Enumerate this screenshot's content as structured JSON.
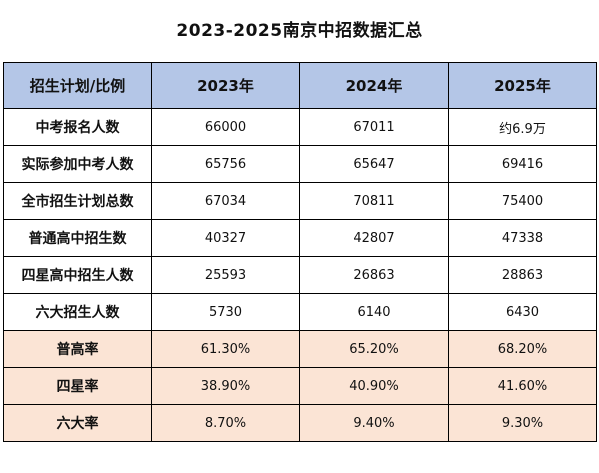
{
  "title": "2023-2025南京中招数据汇总",
  "table": {
    "headers": [
      "招生计划/比例",
      "2023年",
      "2024年",
      "2025年"
    ],
    "rows": [
      {
        "label": "中考报名人数",
        "values": [
          "66000",
          "67011",
          "约6.9万"
        ]
      },
      {
        "label": "实际参加中考人数",
        "values": [
          "65756",
          "65647",
          "69416"
        ]
      },
      {
        "label": "全市招生计划总数",
        "values": [
          "67034",
          "70811",
          "75400"
        ]
      },
      {
        "label": "普通高中招生数",
        "values": [
          "40327",
          "42807",
          "47338"
        ]
      },
      {
        "label": "四星高中招生人数",
        "values": [
          "25593",
          "26863",
          "28863"
        ]
      },
      {
        "label": "六大招生人数",
        "values": [
          "5730",
          "6140",
          "6430"
        ]
      },
      {
        "label": "普高率",
        "values": [
          "61.30%",
          "65.20%",
          "68.20%"
        ]
      },
      {
        "label": "四星率",
        "values": [
          "38.90%",
          "40.90%",
          "41.60%"
        ]
      },
      {
        "label": "六大率",
        "values": [
          "8.70%",
          "9.40%",
          "9.30%"
        ]
      }
    ]
  },
  "colors": {
    "header_fill": "#b4c6e7",
    "rate_row_fill": "#fbe4d5",
    "border": "#000000"
  }
}
